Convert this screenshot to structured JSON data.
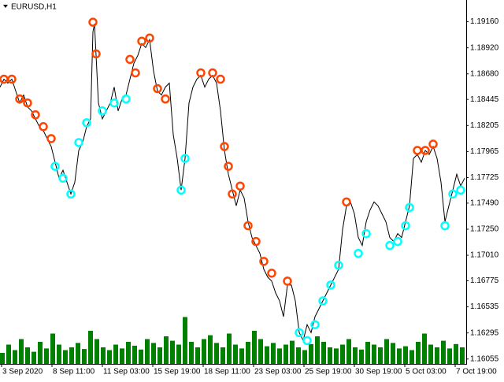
{
  "chart_data": {
    "type": "line",
    "title": "EURUSD,H1",
    "xlim": [
      0,
      592
    ],
    "ylim": [
      1.1601,
      1.1936
    ],
    "y2lim": [
      0,
      100
    ],
    "xticks": [
      {
        "value": 2,
        "label": "3 Sep 2020"
      },
      {
        "value": 66,
        "label": "8 Sep 11:00"
      },
      {
        "value": 130,
        "label": "11 Sep 03:00"
      },
      {
        "value": 194,
        "label": "15 Sep 19:00"
      },
      {
        "value": 258,
        "label": "18 Sep 11:00"
      },
      {
        "value": 322,
        "label": "23 Sep 03:00"
      },
      {
        "value": 386,
        "label": "25 Sep 19:00"
      },
      {
        "value": 450,
        "label": "30 Sep 19:00"
      },
      {
        "value": 514,
        "label": "5 Oct 03:00"
      },
      {
        "value": 578,
        "label": "7 Oct 19:00"
      }
    ],
    "yticks": [
      {
        "value": 1.1916,
        "label": "1.19160"
      },
      {
        "value": 1.1892,
        "label": "1.18920"
      },
      {
        "value": 1.1868,
        "label": "1.18680"
      },
      {
        "value": 1.18445,
        "label": "1.18445"
      },
      {
        "value": 1.18205,
        "label": "1.18205"
      },
      {
        "value": 1.17965,
        "label": "1.17965"
      },
      {
        "value": 1.17725,
        "label": "1.17725"
      },
      {
        "value": 1.1749,
        "label": "1.17490"
      },
      {
        "value": 1.1725,
        "label": "1.17250"
      },
      {
        "value": 1.1701,
        "label": "1.17010"
      },
      {
        "value": 1.16775,
        "label": "1.16775"
      },
      {
        "value": 1.16535,
        "label": "1.16535"
      },
      {
        "value": 1.16295,
        "label": "1.16295"
      },
      {
        "value": 1.16055,
        "label": "1.16055"
      }
    ],
    "series": [
      {
        "type": "bar",
        "axis": "y2",
        "color": "#008000",
        "x": [
          0,
          8,
          16,
          24,
          32,
          40,
          48,
          56,
          64,
          72,
          80,
          88,
          96,
          104,
          112,
          120,
          128,
          136,
          144,
          152,
          160,
          168,
          176,
          184,
          192,
          200,
          208,
          216,
          224,
          232,
          240,
          248,
          256,
          264,
          272,
          280,
          288,
          296,
          304,
          312,
          320,
          328,
          336,
          344,
          352,
          360,
          368,
          376,
          384,
          392,
          400,
          408,
          416,
          424,
          432,
          440,
          448,
          456,
          464,
          472,
          480,
          488,
          496,
          504,
          512,
          520,
          528,
          536,
          544,
          552,
          560,
          568,
          576,
          584
        ],
        "values": [
          20,
          35,
          25,
          45,
          30,
          22,
          40,
          28,
          55,
          35,
          25,
          30,
          38,
          27,
          60,
          45,
          30,
          25,
          35,
          28,
          40,
          33,
          26,
          45,
          38,
          30,
          50,
          42,
          35,
          85,
          40,
          30,
          45,
          52,
          38,
          30,
          55,
          35,
          28,
          40,
          60,
          45,
          32,
          38,
          28,
          35,
          42,
          30,
          25,
          36,
          50,
          40,
          30,
          28,
          35,
          45,
          30,
          26,
          40,
          35,
          30,
          45,
          38,
          28,
          32,
          25,
          40,
          55,
          35,
          30,
          42,
          28,
          36,
          30
        ]
      },
      {
        "type": "line",
        "color": "#000000",
        "x": [
          0,
          5,
          10,
          15,
          20,
          25,
          30,
          35,
          40,
          45,
          50,
          55,
          60,
          65,
          70,
          75,
          80,
          85,
          90,
          95,
          100,
          105,
          110,
          115,
          118,
          120,
          122,
          125,
          130,
          135,
          140,
          145,
          150,
          155,
          160,
          165,
          170,
          175,
          180,
          185,
          190,
          195,
          200,
          205,
          210,
          215,
          220,
          225,
          230,
          235,
          240,
          245,
          250,
          255,
          260,
          265,
          270,
          275,
          280,
          285,
          290,
          295,
          300,
          305,
          310,
          315,
          320,
          325,
          330,
          335,
          340,
          345,
          350,
          355,
          360,
          365,
          370,
          375,
          380,
          385,
          390,
          395,
          400,
          405,
          410,
          415,
          420,
          425,
          430,
          435,
          440,
          445,
          450,
          455,
          460,
          465,
          470,
          475,
          480,
          485,
          490,
          495,
          500,
          505,
          510,
          515,
          520,
          525,
          530,
          535,
          540,
          545,
          550,
          555,
          560,
          565,
          570,
          575,
          580,
          585,
          590
        ],
        "values": [
          1.18558,
          1.18631,
          1.18595,
          1.18631,
          1.18522,
          1.18412,
          1.18485,
          1.18376,
          1.18339,
          1.18266,
          1.18194,
          1.18157,
          1.18084,
          1.18011,
          1.17866,
          1.1772,
          1.17793,
          1.17683,
          1.17574,
          1.17683,
          1.17975,
          1.18048,
          1.18194,
          1.18266,
          1.19068,
          1.19141,
          1.1885,
          1.18412,
          1.18266,
          1.18339,
          1.18412,
          1.18558,
          1.18339,
          1.18449,
          1.18485,
          1.18631,
          1.18777,
          1.1885,
          1.18959,
          1.18923,
          1.18995,
          1.18704,
          1.18522,
          1.18485,
          1.18558,
          1.18595,
          1.18121,
          1.17902,
          1.1761,
          1.17902,
          1.18412,
          1.18558,
          1.18631,
          1.18667,
          1.18558,
          1.18631,
          1.18667,
          1.18595,
          1.18339,
          1.17975,
          1.17756,
          1.1761,
          1.17465,
          1.1761,
          1.17537,
          1.17319,
          1.17173,
          1.171,
          1.17027,
          1.16881,
          1.16808,
          1.16772,
          1.16663,
          1.1659,
          1.16444,
          1.16736,
          1.16736,
          1.1659,
          1.16298,
          1.16225,
          1.16371,
          1.16298,
          1.16444,
          1.16517,
          1.1659,
          1.16663,
          1.16736,
          1.16808,
          1.16881,
          1.17246,
          1.17465,
          1.17501,
          1.17392,
          1.17173,
          1.171,
          1.17319,
          1.17428,
          1.17501,
          1.17465,
          1.17392,
          1.17319,
          1.17173,
          1.17137,
          1.17209,
          1.17173,
          1.17319,
          1.17465,
          1.17902,
          1.17938,
          1.17866,
          1.17975,
          1.17938,
          1.18011,
          1.17902,
          1.17683,
          1.17319,
          1.17465,
          1.1761,
          1.17756,
          1.17647,
          1.1772
        ]
      },
      {
        "type": "scatter",
        "color": "#ff4500",
        "x": [
          5,
          15,
          25,
          35,
          45,
          55,
          65,
          118,
          122,
          165,
          172,
          180,
          190,
          200,
          210,
          255,
          270,
          280,
          285,
          290,
          295,
          305,
          315,
          325,
          335,
          345,
          365,
          440,
          530,
          540,
          550
        ],
        "values": [
          1.18631,
          1.18631,
          1.18449,
          1.18412,
          1.18303,
          1.18194,
          1.18084,
          1.19156,
          1.18864,
          1.18813,
          1.18689,
          1.18981,
          1.1901,
          1.18544,
          1.18449,
          1.18689,
          1.18689,
          1.18631,
          1.18011,
          1.17829,
          1.17574,
          1.17647,
          1.17282,
          1.17137,
          1.16954,
          1.16845,
          1.16772,
          1.17501,
          1.17975,
          1.17975,
          1.18033
        ]
      },
      {
        "type": "scatter",
        "color": "#00ffff",
        "x": [
          70,
          80,
          90,
          100,
          110,
          130,
          145,
          160,
          230,
          235,
          380,
          390,
          400,
          410,
          420,
          430,
          455,
          465,
          495,
          505,
          515,
          520,
          565,
          575,
          585
        ],
        "values": [
          1.17829,
          1.1772,
          1.17574,
          1.18048,
          1.1823,
          1.18339,
          1.18412,
          1.18449,
          1.1761,
          1.17902,
          1.16298,
          1.16225,
          1.16371,
          1.1659,
          1.16736,
          1.16918,
          1.17027,
          1.17209,
          1.171,
          1.17137,
          1.17282,
          1.1745,
          1.17282,
          1.17574,
          1.1761
        ]
      }
    ]
  }
}
